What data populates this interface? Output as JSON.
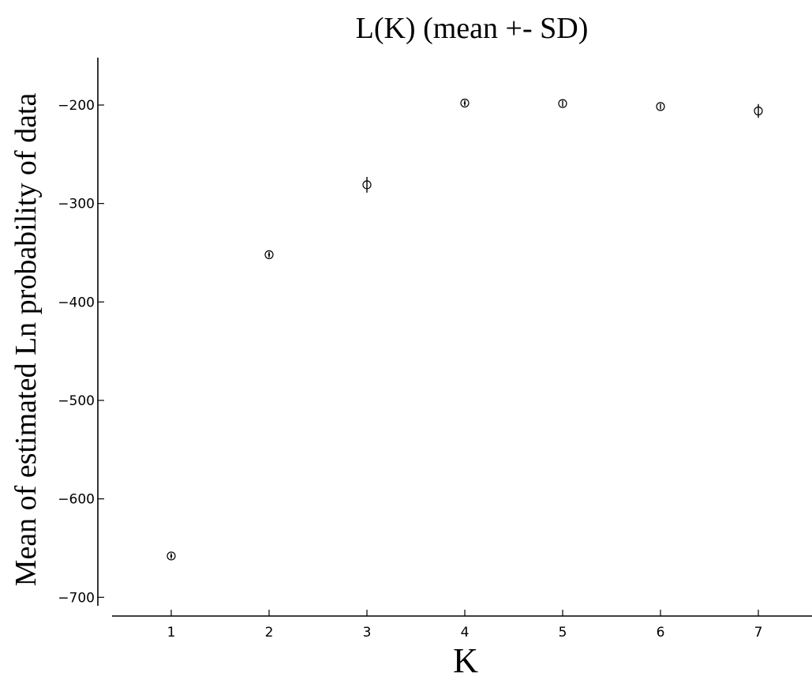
{
  "chart_data": {
    "type": "scatter",
    "title": "L(K) (mean +- SD)",
    "xlabel": "K",
    "ylabel": "Mean of estimated Ln probability of  data",
    "x_ticks": [
      1,
      2,
      3,
      4,
      5,
      6,
      7
    ],
    "y_ticks": [
      -200,
      -300,
      -400,
      -500,
      -600,
      -700
    ],
    "y_tick_labels": [
      "−200",
      "−300",
      "−400",
      "−500",
      "−600",
      "−700"
    ],
    "xlim": [
      0.4,
      7.55
    ],
    "ylim": [
      -718,
      -152
    ],
    "grid": false,
    "points": [
      {
        "x": 1,
        "y": -658,
        "sd": 1
      },
      {
        "x": 2,
        "y": -352,
        "sd": 1
      },
      {
        "x": 3,
        "y": -281,
        "sd": 8
      },
      {
        "x": 4,
        "y": -198,
        "sd": 1.5
      },
      {
        "x": 5,
        "y": -198.5,
        "sd": 3
      },
      {
        "x": 6,
        "y": -201.5,
        "sd": 2
      },
      {
        "x": 7,
        "y": -206,
        "sd": 7
      }
    ],
    "marker": "open-circle-with-error-bar",
    "color": "#000000"
  }
}
